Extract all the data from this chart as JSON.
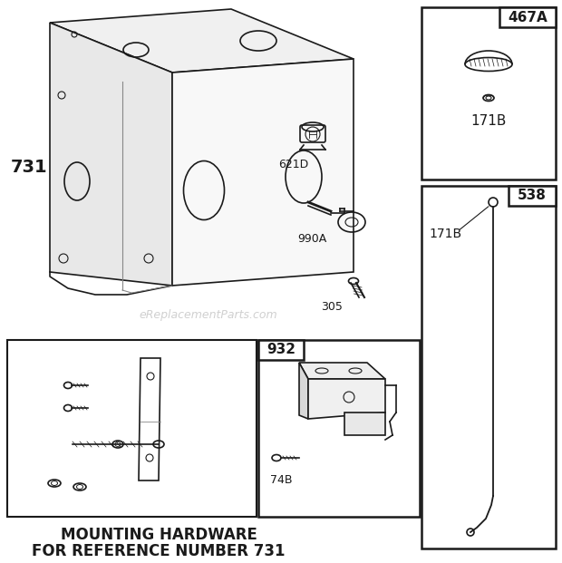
{
  "bg_color": "#ffffff",
  "line_color": "#1a1a1a",
  "watermark_text": "eReplacementParts.com",
  "watermark_color": "#c8c8c8",
  "bottom_text_line1": "MOUNTING HARDWARE",
  "bottom_text_line2": "FOR REFERENCE NUMBER 731",
  "label_731": "731",
  "label_621D": "621D",
  "label_990A": "990A",
  "label_305": "305",
  "label_74B": "74B",
  "label_932": "932",
  "label_467A": "467A",
  "label_171B": "171B",
  "label_538": "538"
}
